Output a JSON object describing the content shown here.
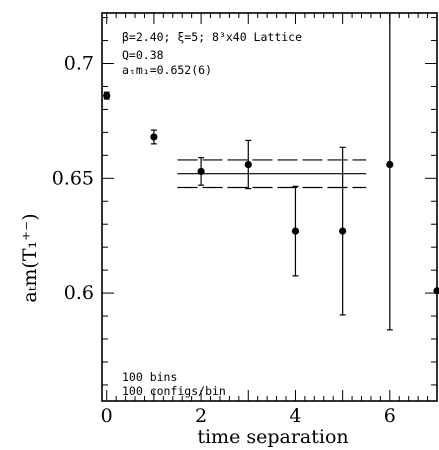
{
  "chart_data": {
    "type": "scatter",
    "title": "",
    "xlabel": "time separation",
    "ylabel": "aₜm(T₁⁺⁻)",
    "xlim": [
      -0.1,
      7.0
    ],
    "ylim": [
      0.553,
      0.722
    ],
    "x_ticks": [
      0,
      2,
      4,
      6
    ],
    "y_ticks": [
      0.6,
      0.65,
      0.7
    ],
    "y_tick_labels": [
      "0.6",
      "0.65",
      "0.7"
    ],
    "points": [
      {
        "x": 0,
        "y": 0.686,
        "err": 0.0015
      },
      {
        "x": 1,
        "y": 0.668,
        "err": 0.003
      },
      {
        "x": 2,
        "y": 0.653,
        "err": 0.006
      },
      {
        "x": 3,
        "y": 0.656,
        "err": 0.0105
      },
      {
        "x": 4,
        "y": 0.627,
        "err": 0.0195
      },
      {
        "x": 5,
        "y": 0.627,
        "err": 0.0365
      },
      {
        "x": 6,
        "y": 0.656,
        "err": 0.072
      },
      {
        "x": 7,
        "y": 0.601,
        "err": 0
      }
    ],
    "fit": {
      "x_range": [
        1.5,
        5.5
      ],
      "value": 0.652,
      "error": 0.006
    },
    "grid": false,
    "legend": "none",
    "annotation_lines": [
      "β=2.40; ξ=5; 8³x40 Lattice",
      "Q=0.38",
      "aₜm₁=0.652(6)"
    ],
    "stats_lines": [
      "100 bins",
      "100 configs/bin"
    ]
  },
  "colors": {
    "ink": "#000000",
    "background": "#ffffff"
  }
}
